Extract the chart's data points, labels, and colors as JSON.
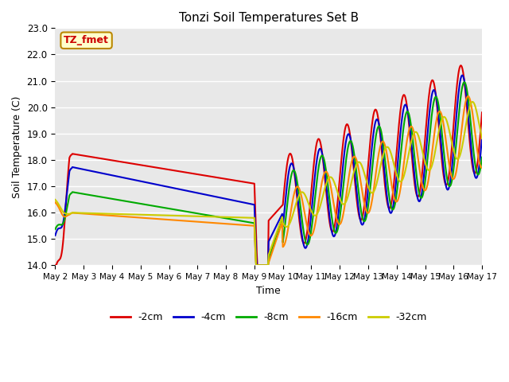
{
  "title": "Tonzi Soil Temperatures Set B",
  "xlabel": "Time",
  "ylabel": "Soil Temperature (C)",
  "annotation_text": "TZ_fmet",
  "annotation_color": "#cc0000",
  "annotation_bg": "#ffffcc",
  "annotation_border": "#bb8800",
  "ylim": [
    14.0,
    23.0
  ],
  "yticks": [
    14.0,
    15.0,
    16.0,
    17.0,
    18.0,
    19.0,
    20.0,
    21.0,
    22.0,
    23.0
  ],
  "xtick_labels": [
    "May 2",
    "May 3",
    "May 4",
    "May 5",
    "May 6",
    "May 7",
    "May 8",
    "May 9",
    "May 10",
    "May 11",
    "May 12",
    "May 13",
    "May 14",
    "May 15",
    "May 16",
    "May 17"
  ],
  "colors": {
    "-2cm": "#dd0000",
    "-4cm": "#0000cc",
    "-8cm": "#00aa00",
    "-16cm": "#ff8800",
    "-32cm": "#cccc00"
  },
  "legend_labels": [
    "-2cm",
    "-4cm",
    "-8cm",
    "-16cm",
    "-32cm"
  ],
  "line_width": 1.5
}
